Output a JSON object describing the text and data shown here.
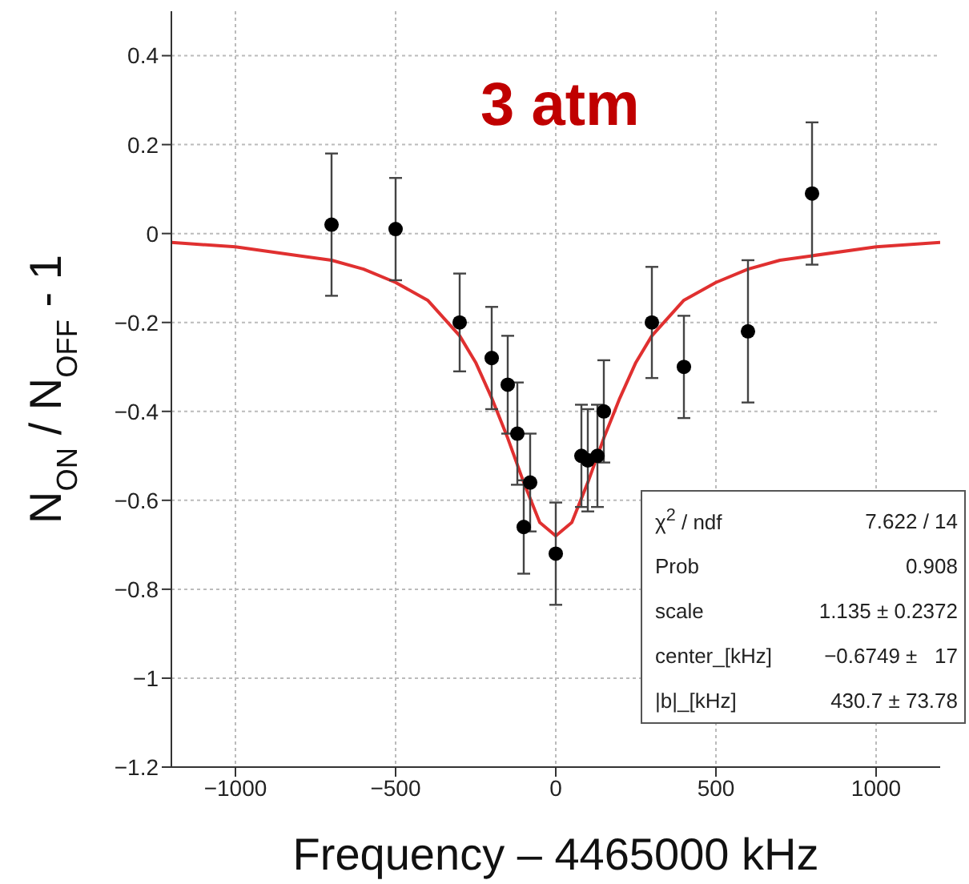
{
  "chart_data": {
    "type": "scatter",
    "title": "3 atm",
    "xlabel": "Frequency – 4465000 kHz",
    "ylabel": "N$_{ON}$ / N$_{OFF}$ - 1",
    "xlim": [
      -1200,
      1200
    ],
    "xticks": [
      {
        "value": -1000,
        "label": "−1000"
      },
      {
        "value": -500,
        "label": "−500"
      },
      0,
      500,
      1000
    ],
    "ylim": [
      -1.2,
      0.5
    ],
    "yticks": [
      0.4,
      0.2,
      0,
      {
        "value": -0.2,
        "label": "−0.2"
      },
      {
        "value": -0.4,
        "label": "−0.4"
      },
      {
        "value": -0.6,
        "label": "−0.6"
      },
      {
        "value": -0.8,
        "label": "−0.8"
      },
      {
        "value": -1,
        "label": "−1"
      },
      {
        "value": -1.2,
        "label": "−1.2"
      }
    ],
    "grid": true,
    "series": [
      {
        "color": "#000000",
        "marker": "circle",
        "x": [
          -700,
          -500,
          -300,
          -200,
          -150,
          -120,
          -100,
          -80,
          0,
          80,
          100,
          130,
          150,
          300,
          400,
          600,
          800
        ],
        "values": [
          0.02,
          0.01,
          -0.2,
          -0.28,
          -0.34,
          -0.45,
          -0.66,
          -0.56,
          -0.72,
          -0.5,
          -0.51,
          -0.5,
          -0.4,
          -0.2,
          -0.3,
          -0.22,
          0.09
        ],
        "errors": [
          0.16,
          0.115,
          0.11,
          0.115,
          0.11,
          0.115,
          0.105,
          0.11,
          0.115,
          0.115,
          0.115,
          0.115,
          0.115,
          0.125,
          0.115,
          0.16,
          0.16
        ]
      },
      {
        "type": "line",
        "color": "#e03030",
        "marker": "none",
        "x": [
          -1200,
          -1000,
          -800,
          -700,
          -600,
          -500,
          -400,
          -300,
          -250,
          -200,
          -150,
          -100,
          -50,
          0,
          50,
          100,
          150,
          200,
          250,
          300,
          400,
          500,
          600,
          700,
          800,
          1000,
          1200
        ],
        "values": [
          -0.02,
          -0.03,
          -0.05,
          -0.06,
          -0.08,
          -0.11,
          -0.15,
          -0.23,
          -0.29,
          -0.37,
          -0.46,
          -0.56,
          -0.65,
          -0.68,
          -0.65,
          -0.56,
          -0.46,
          -0.37,
          -0.29,
          -0.23,
          -0.15,
          -0.11,
          -0.08,
          -0.06,
          -0.05,
          -0.03,
          -0.02
        ]
      }
    ],
    "annotations": [
      "χ$^{2}$ / ndf",
      "7.622 / 14",
      "Prob",
      "0.908",
      "scale",
      "1.135 ± 0.2372",
      "center_[kHz]",
      "−0.6749 ±   17",
      "|b|_[kHz]",
      "430.7 ± 73.78"
    ]
  }
}
